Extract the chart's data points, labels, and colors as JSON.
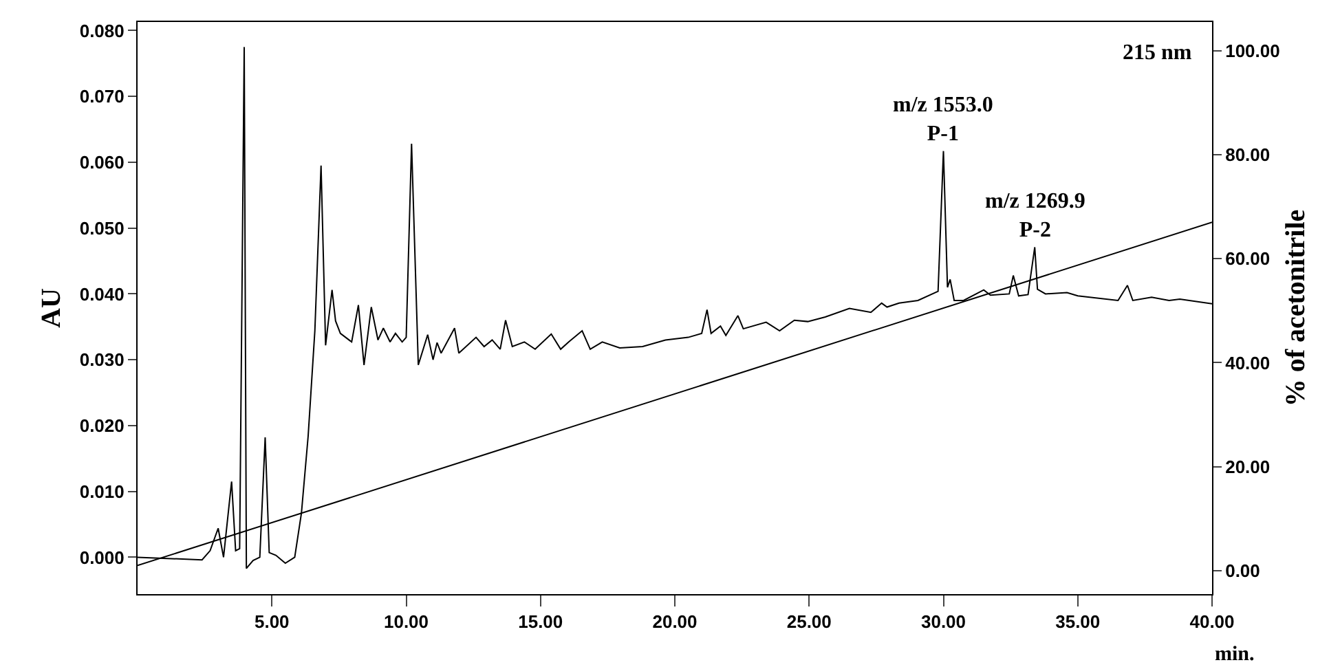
{
  "chart_data": {
    "type": "line",
    "xlabel": "min.",
    "ylabel": "AU",
    "y2label": "% of acetonitrile",
    "annotations": [
      "215 nm",
      {
        "text": "m/z 1553.0\nP-1",
        "x": 30.0,
        "y": 0.0617
      },
      {
        "text": "m/z 1269.9\nP-2",
        "x": 33.4,
        "y": 0.0471
      }
    ],
    "xlim": [
      0,
      40
    ],
    "xticks": [
      {
        "value": 5,
        "label": "5.00"
      },
      {
        "value": 10,
        "label": "10.00"
      },
      {
        "value": 15,
        "label": "15.00"
      },
      {
        "value": 20,
        "label": "20.00"
      },
      {
        "value": 25,
        "label": "25.00"
      },
      {
        "value": 30,
        "label": "30.00"
      },
      {
        "value": 35,
        "label": "35.00"
      },
      {
        "value": 40,
        "label": "40.00"
      }
    ],
    "ylim": [
      -0.0056,
      0.0813
    ],
    "yticks": [
      {
        "value": 0,
        "label": "0.000"
      },
      {
        "value": 0.01,
        "label": "0.010"
      },
      {
        "value": 0.02,
        "label": "0.020"
      },
      {
        "value": 0.03,
        "label": "0.030"
      },
      {
        "value": 0.04,
        "label": "0.040"
      },
      {
        "value": 0.05,
        "label": "0.050"
      },
      {
        "value": 0.06,
        "label": "0.060"
      },
      {
        "value": 0.07,
        "label": "0.070"
      },
      {
        "value": 0.08,
        "label": "0.080"
      }
    ],
    "y2lim": [
      -4.5,
      105.5
    ],
    "y2ticks": [
      {
        "value": 0,
        "label": "0.00"
      },
      {
        "value": 20,
        "label": "20.00"
      },
      {
        "value": 40,
        "label": "40.00"
      },
      {
        "value": 60,
        "label": "60.00"
      },
      {
        "value": 80,
        "label": "80.00"
      },
      {
        "value": 100,
        "label": "100.00"
      }
    ],
    "marker": "none",
    "line_style": "solid",
    "series": [
      {
        "color": "#000000",
        "x": [
          0,
          2.4,
          2.7,
          3.0,
          3.2,
          3.5,
          3.65,
          3.8,
          3.97,
          4.05,
          4.3,
          4.55,
          4.75,
          4.9,
          5.15,
          5.5,
          5.85,
          6.1,
          6.35,
          6.6,
          6.83,
          7.0,
          7.24,
          7.37,
          7.55,
          7.97,
          8.22,
          8.43,
          8.7,
          8.95,
          9.15,
          9.4,
          9.6,
          9.85,
          10.0,
          10.2,
          10.45,
          10.8,
          11.0,
          11.15,
          11.3,
          11.8,
          11.96,
          12.6,
          12.9,
          13.2,
          13.5,
          13.7,
          13.95,
          14.4,
          14.8,
          15.4,
          15.75,
          16.05,
          16.55,
          16.85,
          17.3,
          17.95,
          18.8,
          19.65,
          20.5,
          21.0,
          21.2,
          21.35,
          21.7,
          21.9,
          22.35,
          22.55,
          23.4,
          23.9,
          24.45,
          24.95,
          25.6,
          26.5,
          27.3,
          27.7,
          27.9,
          28.35,
          29.05,
          29.8,
          30.0,
          30.15,
          30.25,
          30.4,
          30.75,
          31.5,
          31.75,
          32.45,
          32.6,
          32.8,
          33.15,
          33.4,
          33.5,
          33.8,
          34.6,
          35.0,
          36.5,
          36.85,
          37.05,
          37.75,
          38.4,
          38.8,
          40.0
        ],
        "values": [
          0.0,
          -0.0004,
          0.001,
          0.0044,
          0.0,
          0.0115,
          0.001,
          0.0013,
          0.0775,
          -0.0017,
          -0.0005,
          0.0,
          0.0182,
          0.0007,
          0.0003,
          -0.0009,
          0.0,
          0.0067,
          0.0184,
          0.0344,
          0.0595,
          0.0322,
          0.0406,
          0.0359,
          0.034,
          0.0327,
          0.0383,
          0.0292,
          0.038,
          0.033,
          0.0348,
          0.0327,
          0.034,
          0.0327,
          0.0334,
          0.0628,
          0.0292,
          0.0338,
          0.03,
          0.0326,
          0.031,
          0.0348,
          0.031,
          0.0334,
          0.032,
          0.033,
          0.0316,
          0.036,
          0.032,
          0.0327,
          0.0316,
          0.0339,
          0.0316,
          0.0327,
          0.0344,
          0.0316,
          0.0327,
          0.0318,
          0.032,
          0.033,
          0.0334,
          0.034,
          0.0376,
          0.034,
          0.0351,
          0.0337,
          0.0367,
          0.0347,
          0.0357,
          0.0344,
          0.036,
          0.0358,
          0.0365,
          0.0378,
          0.0372,
          0.0386,
          0.038,
          0.0386,
          0.039,
          0.0404,
          0.0617,
          0.041,
          0.0422,
          0.039,
          0.039,
          0.0406,
          0.0398,
          0.04,
          0.0428,
          0.0397,
          0.0399,
          0.0471,
          0.0407,
          0.04,
          0.0402,
          0.0397,
          0.039,
          0.0413,
          0.039,
          0.0395,
          0.039,
          0.0392,
          0.0385
        ]
      },
      {
        "color": "#000000",
        "axis": "y2",
        "x": [
          0,
          40
        ],
        "values": [
          1,
          67
        ]
      }
    ]
  }
}
